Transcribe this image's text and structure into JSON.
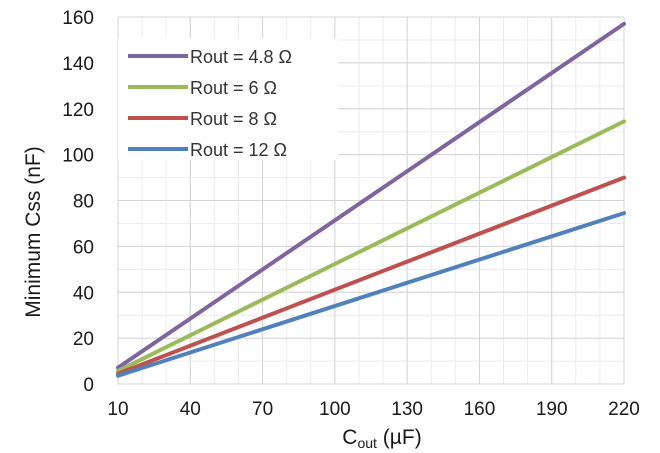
{
  "chart_data": {
    "type": "line",
    "xlabel": "C",
    "xlabel_sub": "out",
    "xlabel_unit": " (µF)",
    "ylabel": "Minimum Css (nF)",
    "xlim": [
      10,
      220
    ],
    "ylim": [
      0,
      160
    ],
    "x_ticks": [
      10,
      40,
      70,
      100,
      130,
      160,
      190,
      220
    ],
    "y_ticks": [
      0,
      20,
      40,
      60,
      80,
      100,
      120,
      140,
      160
    ],
    "grid": true,
    "legend_position": "top-left",
    "x": [
      10,
      220
    ],
    "series": [
      {
        "name": "Rout = 4.8 Ω",
        "values": [
          7.1,
          157
        ],
        "color": "#8064a2"
      },
      {
        "name": "Rout = 6 Ω",
        "values": [
          5.7,
          114.5
        ],
        "color": "#9bbb59"
      },
      {
        "name": "Rout = 8 Ω",
        "values": [
          4.5,
          90
        ],
        "color": "#c0504d"
      },
      {
        "name": "Rout = 12 Ω",
        "values": [
          3.6,
          74.5
        ],
        "color": "#4f81bd"
      }
    ]
  }
}
